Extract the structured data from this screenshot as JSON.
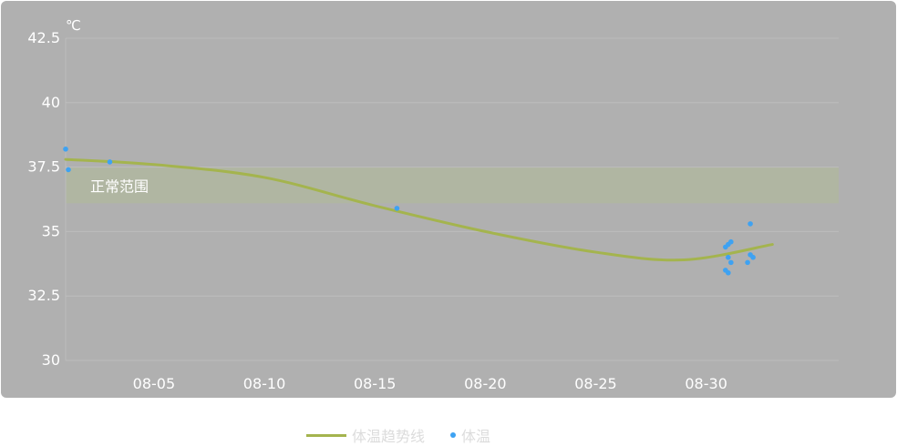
{
  "chart_data": {
    "type": "scatter",
    "unit_label": "℃",
    "y_ticks": [
      "42.5",
      "40",
      "37.5",
      "35",
      "32.5",
      "30"
    ],
    "x_ticks": [
      "08-05",
      "08-10",
      "08-15",
      "08-20",
      "08-25",
      "08-30"
    ],
    "ylim": [
      30,
      42.5
    ],
    "xlim": [
      "08-01",
      "09-05"
    ],
    "grid": true,
    "legend_position": "bottom-center",
    "normal_range": {
      "label": "正常范围",
      "from": 36.1,
      "to": 37.5
    },
    "series": [
      {
        "name": "体温趋势线",
        "type": "line",
        "color": "#a4b44e",
        "x": [
          "08-01",
          "08-05",
          "08-10",
          "08-15",
          "08-20",
          "08-25",
          "08-29",
          "09-02"
        ],
        "y": [
          37.8,
          37.6,
          37.1,
          36.0,
          35.0,
          34.2,
          33.9,
          34.5
        ]
      },
      {
        "name": "体温",
        "type": "scatter",
        "color": "#3ea2f2",
        "points": [
          {
            "x": "08-01",
            "y": 38.2
          },
          {
            "x": "08-01",
            "y": 37.4
          },
          {
            "x": "08-03",
            "y": 37.7
          },
          {
            "x": "08-16",
            "y": 35.9
          },
          {
            "x": "08-31",
            "y": 34.5
          },
          {
            "x": "08-31",
            "y": 34.6
          },
          {
            "x": "08-31",
            "y": 34.4
          },
          {
            "x": "08-31",
            "y": 34.0
          },
          {
            "x": "08-31",
            "y": 33.8
          },
          {
            "x": "08-31",
            "y": 33.5
          },
          {
            "x": "08-31",
            "y": 33.4
          },
          {
            "x": "09-01",
            "y": 35.3
          },
          {
            "x": "09-01",
            "y": 34.0
          },
          {
            "x": "09-01",
            "y": 33.8
          },
          {
            "x": "09-01",
            "y": 34.1
          }
        ]
      }
    ]
  }
}
